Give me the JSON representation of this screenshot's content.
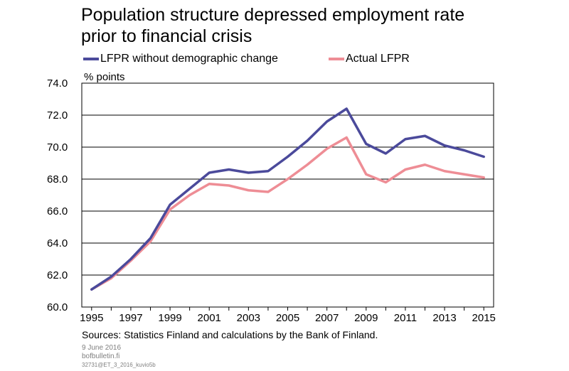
{
  "title_line1": "Population structure depressed employment rate",
  "title_line2": "prior to financial crisis",
  "unit_label": "% points",
  "source": "Sources: Statistics Finland and calculations by the Bank of Finland.",
  "footer": {
    "date": "9 June 2016",
    "site": "bofbulletin.fi",
    "code": "32731@ET_3_2016_kuvio5b"
  },
  "colors": {
    "series_1": "#4b4a9b",
    "series_2": "#ee8d95",
    "grid": "#000000"
  },
  "chart_data": {
    "type": "line",
    "x": [
      1995,
      1996,
      1997,
      1998,
      1999,
      2000,
      2001,
      2002,
      2003,
      2004,
      2005,
      2006,
      2007,
      2008,
      2009,
      2010,
      2011,
      2012,
      2013,
      2014,
      2015
    ],
    "series": [
      {
        "name": "LFPR without demographic change",
        "color": "#4b4a9b",
        "values": [
          61.1,
          61.9,
          63.0,
          64.3,
          66.4,
          67.4,
          68.4,
          68.6,
          68.4,
          68.5,
          69.4,
          70.4,
          71.6,
          72.4,
          70.2,
          69.6,
          70.5,
          70.7,
          70.1,
          69.8,
          69.4
        ]
      },
      {
        "name": "Actual LFPR",
        "color": "#ee8d95",
        "values": [
          61.1,
          61.8,
          62.9,
          64.1,
          66.1,
          67.0,
          67.7,
          67.6,
          67.3,
          67.2,
          68.0,
          68.9,
          69.9,
          70.6,
          68.3,
          67.8,
          68.6,
          68.9,
          68.5,
          68.3,
          68.1
        ]
      }
    ],
    "ylim": [
      60,
      74
    ],
    "y_ticks": [
      "60.0",
      "62.0",
      "64.0",
      "66.0",
      "68.0",
      "70.0",
      "72.0",
      "74.0"
    ],
    "x_ticks": [
      "1995",
      "1997",
      "1999",
      "2001",
      "2003",
      "2005",
      "2007",
      "2009",
      "2011",
      "2013",
      "2015"
    ],
    "grid": "horizontal",
    "legend_position": "top"
  }
}
